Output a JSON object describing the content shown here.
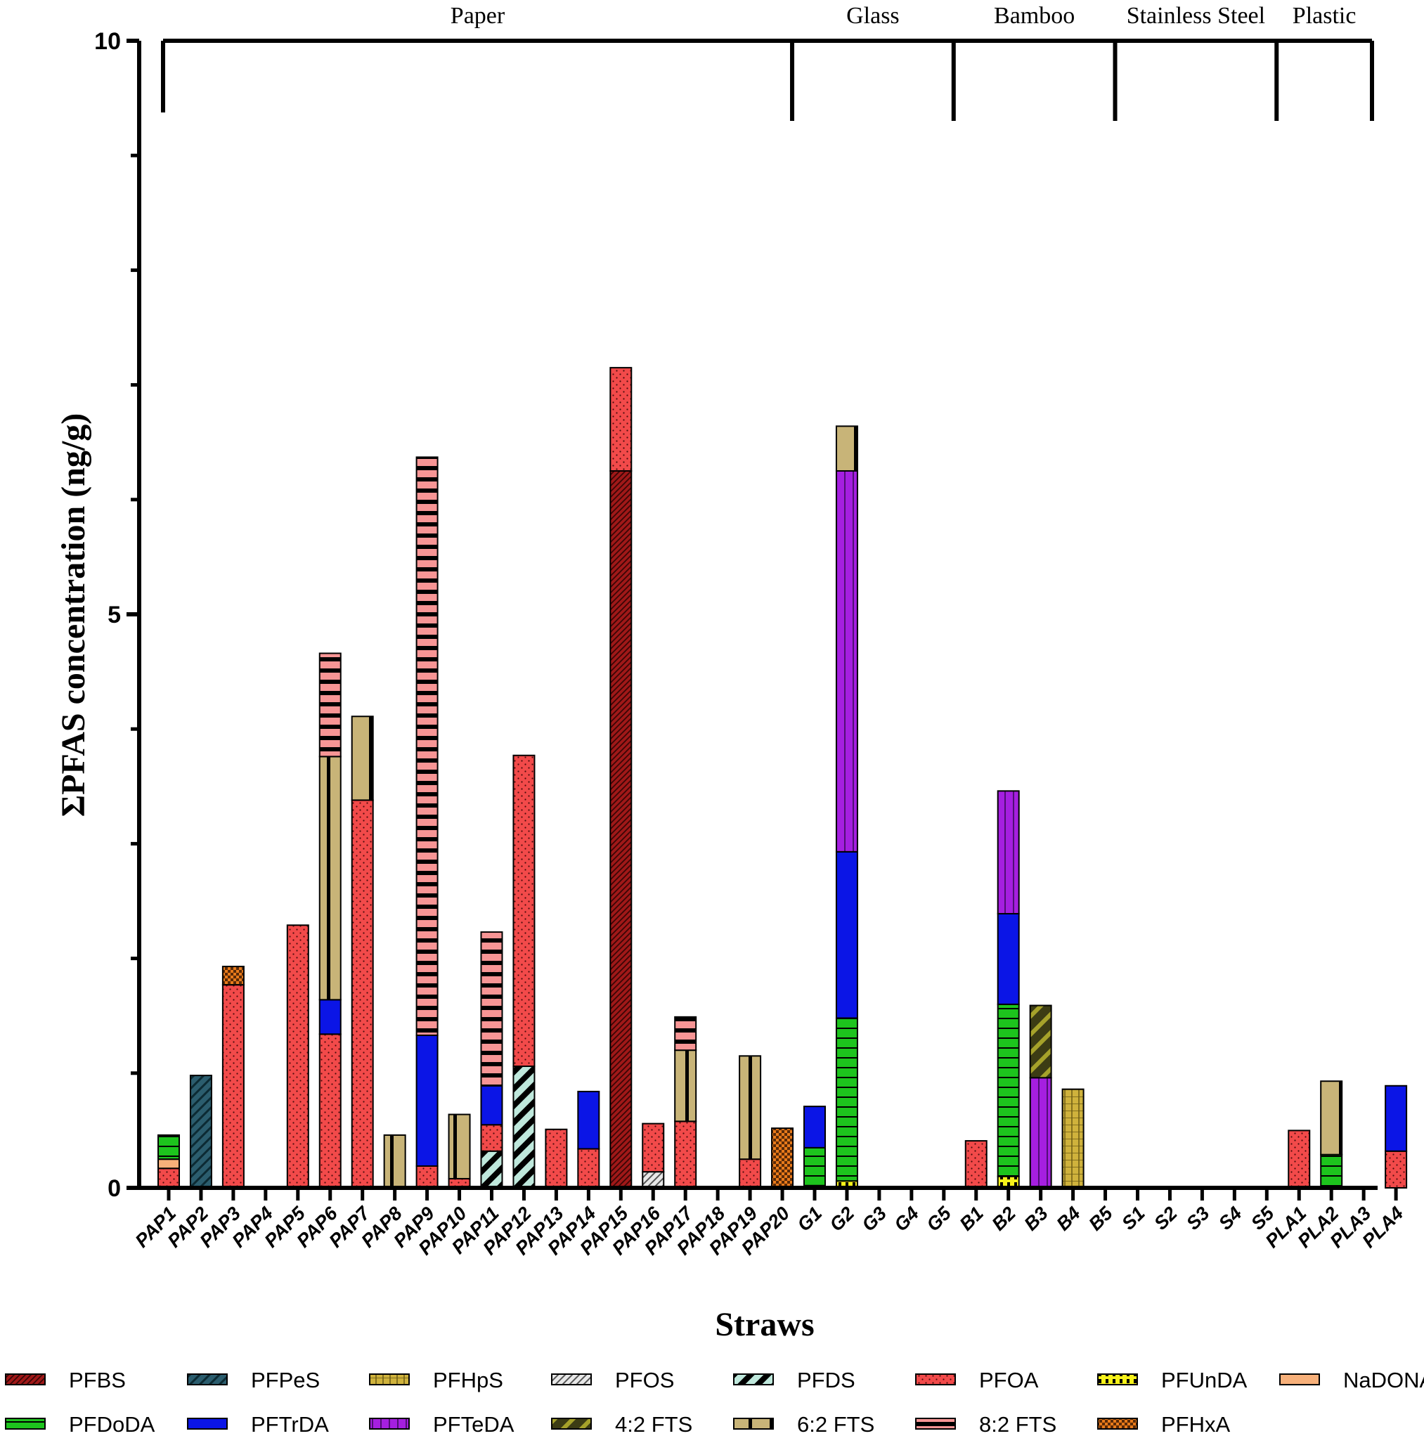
{
  "chart_data": {
    "type": "bar",
    "stacked": true,
    "title": "",
    "xlabel": "Straws",
    "ylabel": "ΣPFAS concentration (ng/g)",
    "ylim": [
      0,
      10
    ],
    "yticks": [
      0,
      5,
      10
    ],
    "grid": false,
    "legend_position": "bottom",
    "categories": [
      "PAP1",
      "PAP2",
      "PAP3",
      "PAP4",
      "PAP5",
      "PAP6",
      "PAP7",
      "PAP8",
      "PAP9",
      "PAP10",
      "PAP11",
      "PAP12",
      "PAP13",
      "PAP14",
      "PAP15",
      "PAP16",
      "PAP17",
      "PAP18",
      "PAP19",
      "PAP20",
      "G1",
      "G2",
      "G3",
      "G4",
      "G5",
      "B1",
      "B2",
      "B3",
      "B4",
      "B5",
      "S1",
      "S2",
      "S3",
      "S4",
      "S5",
      "PLA1",
      "PLA2",
      "PLA3",
      "PLA4"
    ],
    "groups": [
      {
        "label": "Paper",
        "from": "PAP1",
        "to": "PAP20"
      },
      {
        "label": "Glass",
        "from": "G1",
        "to": "G5"
      },
      {
        "label": "Bamboo",
        "from": "B1",
        "to": "B5"
      },
      {
        "label": "Stainless Steel",
        "from": "S1",
        "to": "S5"
      },
      {
        "label": "Plastic",
        "from": "PLA1",
        "to": "PLA4"
      }
    ],
    "series": [
      {
        "name": "PFBS",
        "color": "#a01818",
        "pattern": "diag-dense",
        "values": [
          0,
          0,
          0,
          0,
          0,
          0,
          0,
          0,
          0,
          0,
          0,
          0,
          0,
          0,
          6.25,
          0,
          0,
          0,
          0,
          0,
          0,
          0,
          0,
          0,
          0,
          0,
          0,
          0,
          0,
          0,
          0,
          0,
          0,
          0,
          0,
          0,
          0,
          0,
          0
        ]
      },
      {
        "name": "PFPeS",
        "color": "#2b5d6e",
        "pattern": "diag-wide",
        "values": [
          0,
          0.98,
          0,
          0,
          0,
          0,
          0,
          0,
          0,
          0,
          0,
          0,
          0,
          0,
          0,
          0,
          0,
          0,
          0,
          0,
          0,
          0,
          0,
          0,
          0,
          0,
          0,
          0,
          0,
          0,
          0,
          0,
          0,
          0,
          0,
          0,
          0,
          0,
          0
        ]
      },
      {
        "name": "PFHpS",
        "color": "#cfb23c",
        "pattern": "grid",
        "values": [
          0,
          0,
          0,
          0,
          0,
          0,
          0,
          0,
          0,
          0,
          0,
          0,
          0,
          0,
          0,
          0,
          0,
          0,
          0,
          0,
          0,
          0,
          0,
          0,
          0,
          0,
          0,
          0,
          0.86,
          0,
          0,
          0,
          0,
          0,
          0,
          0,
          0,
          0,
          0
        ]
      },
      {
        "name": "PFOS",
        "color": "#e8e8e8",
        "pattern": "diag-light",
        "values": [
          0,
          0,
          0,
          0,
          0,
          0,
          0,
          0,
          0,
          0,
          0,
          0,
          0,
          0,
          0,
          0.14,
          0,
          0,
          0,
          0,
          0,
          0,
          0,
          0,
          0,
          0,
          0,
          0,
          0,
          0,
          0,
          0,
          0,
          0,
          0,
          0,
          0,
          0,
          0
        ]
      },
      {
        "name": "PFDS",
        "color": "#bfe8dc",
        "pattern": "diag-black",
        "values": [
          0,
          0,
          0,
          0,
          0,
          0,
          0,
          0,
          0,
          0,
          0.32,
          1.06,
          0,
          0,
          0,
          0,
          0,
          0,
          0,
          0,
          0,
          0,
          0,
          0,
          0,
          0,
          0,
          0,
          0,
          0,
          0,
          0,
          0,
          0,
          0,
          0,
          0,
          0,
          0
        ]
      },
      {
        "name": "PFOA",
        "color": "#f24a4a",
        "pattern": "dots",
        "values": [
          0.17,
          0,
          1.77,
          0,
          2.29,
          1.34,
          3.38,
          0,
          0.19,
          0.08,
          0.23,
          2.71,
          0.51,
          0.34,
          0.9,
          0.42,
          0.58,
          0,
          0.25,
          0,
          0.02,
          0,
          0,
          0,
          0,
          0.41,
          0,
          0,
          0,
          0,
          0,
          0,
          0,
          0,
          0,
          0.5,
          0,
          0,
          0.32
        ]
      },
      {
        "name": "PFUnDA",
        "color": "#f7f21a",
        "pattern": "yellow-block",
        "values": [
          0,
          0,
          0,
          0,
          0,
          0,
          0,
          0,
          0,
          0,
          0,
          0,
          0,
          0,
          0,
          0,
          0,
          0,
          0,
          0,
          0,
          0.06,
          0,
          0,
          0,
          0,
          0.1,
          0,
          0,
          0,
          0,
          0,
          0,
          0,
          0,
          0,
          0,
          0,
          0
        ]
      },
      {
        "name": "NaDONA",
        "color": "#f7b07a",
        "pattern": "plain",
        "values": [
          0.08,
          0,
          0,
          0,
          0,
          0,
          0,
          0,
          0,
          0,
          0,
          0,
          0,
          0,
          0,
          0,
          0,
          0,
          0,
          0,
          0,
          0,
          0,
          0,
          0,
          0,
          0,
          0,
          0,
          0,
          0,
          0,
          0,
          0,
          0,
          0,
          0,
          0,
          0
        ]
      },
      {
        "name": "PFDoDA",
        "color": "#1dc41d",
        "pattern": "hstripes",
        "values": [
          0.21,
          0,
          0,
          0,
          0,
          0,
          0,
          0,
          0,
          0,
          0,
          0,
          0,
          0,
          0,
          0,
          0,
          0,
          0,
          0,
          0.33,
          1.42,
          0,
          0,
          0,
          0,
          1.5,
          0,
          0,
          0,
          0,
          0,
          0,
          0,
          0,
          0,
          0.29,
          0,
          0
        ]
      },
      {
        "name": "PFTrDA",
        "color": "#0b15e6",
        "pattern": "plain",
        "values": [
          0,
          0,
          0,
          0,
          0,
          0.3,
          0,
          0,
          1.14,
          0,
          0.34,
          0,
          0,
          0.5,
          0,
          0,
          0,
          0,
          0,
          0,
          0.36,
          1.45,
          0,
          0,
          0,
          0,
          0.79,
          0,
          0,
          0,
          0,
          0,
          0,
          0,
          0,
          0,
          0,
          0,
          0.57
        ]
      },
      {
        "name": "PFTeDA",
        "color": "#a51fe0",
        "pattern": "vstripes",
        "values": [
          0,
          0,
          0,
          0,
          0,
          0,
          0,
          0,
          0,
          0,
          0,
          0,
          0,
          0,
          0,
          0,
          0,
          0,
          0,
          0,
          0,
          3.32,
          0,
          0,
          0,
          0,
          1.07,
          0.96,
          0,
          0,
          0,
          0,
          0,
          0,
          0,
          0,
          0,
          0,
          0
        ]
      },
      {
        "name": "4:2 FTS",
        "color": "#3c3c14",
        "pattern": "diag-olive",
        "values": [
          0,
          0,
          0,
          0,
          0,
          0,
          0,
          0,
          0,
          0,
          0,
          0,
          0,
          0,
          0,
          0,
          0,
          0,
          0,
          0,
          0,
          0,
          0,
          0,
          0,
          0,
          0,
          0.63,
          0,
          0,
          0,
          0,
          0,
          0,
          0,
          0,
          0,
          0,
          0
        ]
      },
      {
        "name": "6:2 FTS",
        "color": "#c8b478",
        "pattern": "vline",
        "values": [
          0,
          0,
          0,
          0,
          0,
          2.12,
          0.73,
          0.46,
          0,
          0.56,
          0,
          0,
          0,
          0,
          0,
          0,
          0.62,
          0,
          0.9,
          0,
          0,
          0.39,
          0,
          0,
          0,
          0,
          0,
          0,
          0,
          0,
          0,
          0,
          0,
          0,
          0,
          0,
          0.64,
          0,
          0
        ]
      },
      {
        "name": "8:2 FTS",
        "color": "#f79595",
        "pattern": "hbands",
        "values": [
          0,
          0,
          0,
          0,
          0,
          0.9,
          0,
          0,
          5.04,
          0,
          1.34,
          0,
          0,
          0,
          0,
          0,
          0.29,
          0,
          0,
          0,
          0,
          0,
          0,
          0,
          0,
          0,
          0,
          0,
          0,
          0,
          0,
          0,
          0,
          0,
          0,
          0,
          0,
          0,
          0
        ]
      },
      {
        "name": "PFHxA",
        "color": "#e87a1a",
        "pattern": "check",
        "values": [
          0,
          0,
          0.16,
          0,
          0,
          0,
          0,
          0,
          0,
          0,
          0,
          0,
          0,
          0,
          0,
          0,
          0,
          0,
          0,
          0.52,
          0,
          0,
          0,
          0,
          0,
          0,
          0,
          0,
          0,
          0,
          0,
          0,
          0,
          0,
          0,
          0,
          0,
          0,
          0
        ]
      }
    ]
  }
}
